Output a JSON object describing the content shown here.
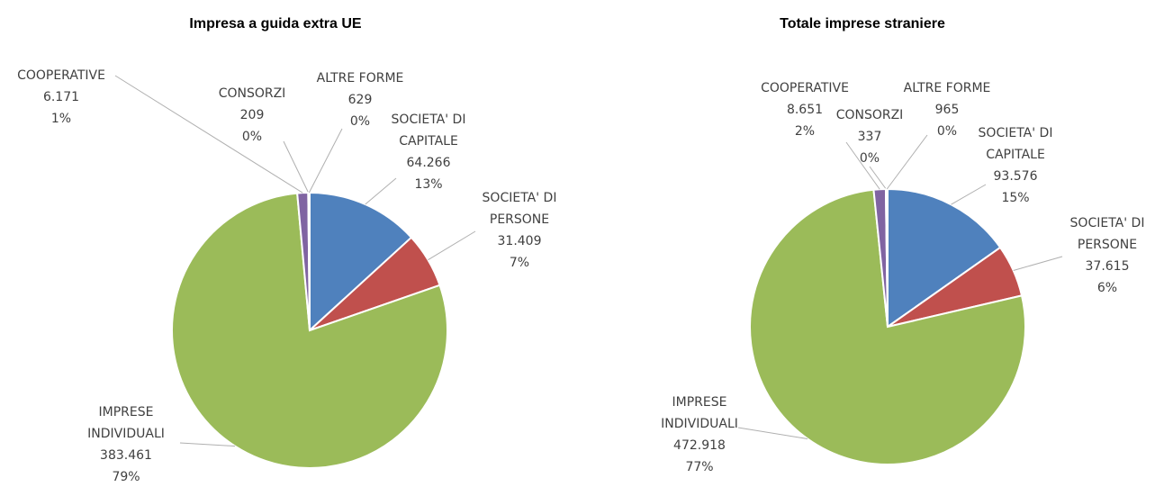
{
  "chart_data": [
    {
      "type": "pie",
      "title": "Impresa a guida extra UE",
      "categories": [
        "SOCIETA' DI CAPITALE",
        "SOCIETA' DI PERSONE",
        "IMPRESE INDIVIDUALI",
        "COOPERATIVE",
        "CONSORZI",
        "ALTRE FORME"
      ],
      "values": [
        64266,
        31409,
        383461,
        6171,
        209,
        629
      ],
      "value_labels": [
        "64.266",
        "31.409",
        "383.461",
        "6.171",
        "209",
        "629"
      ],
      "percent_labels": [
        "13%",
        "7%",
        "79%",
        "1%",
        "0%",
        "0%"
      ],
      "colors": [
        "#4f81bd",
        "#c0504d",
        "#9bbb59",
        "#8064a2",
        "#4bacc6",
        "#f79646"
      ]
    },
    {
      "type": "pie",
      "title": "Totale imprese straniere",
      "categories": [
        "SOCIETA' DI CAPITALE",
        "SOCIETA' DI PERSONE",
        "IMPRESE INDIVIDUALI",
        "COOPERATIVE",
        "CONSORZI",
        "ALTRE FORME"
      ],
      "values": [
        93576,
        37615,
        472918,
        8651,
        337,
        965
      ],
      "value_labels": [
        "93.576",
        "37.615",
        "472.918",
        "8.651",
        "337",
        "965"
      ],
      "percent_labels": [
        "15%",
        "6%",
        "77%",
        "2%",
        "0%",
        "0%"
      ],
      "colors": [
        "#4f81bd",
        "#c0504d",
        "#9bbb59",
        "#8064a2",
        "#4bacc6",
        "#f79646"
      ]
    }
  ]
}
